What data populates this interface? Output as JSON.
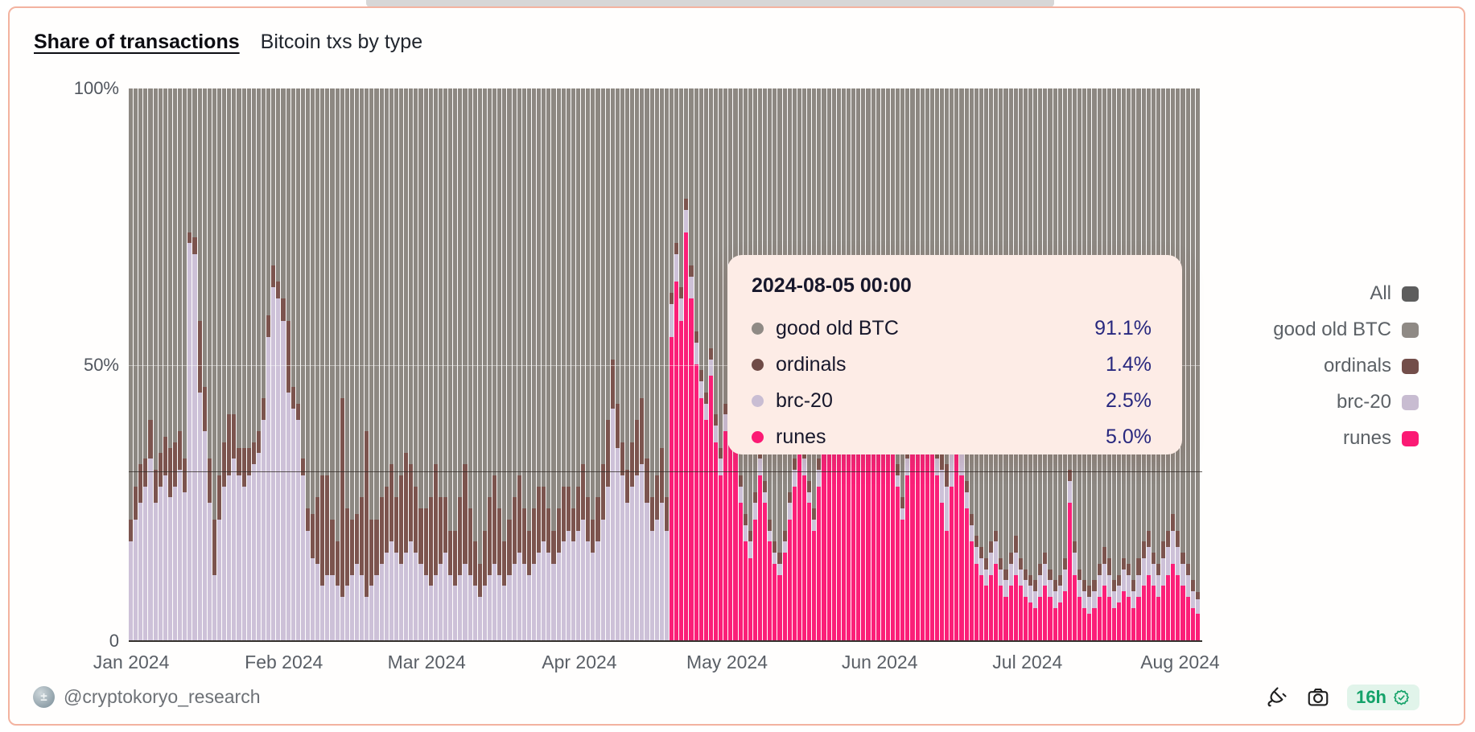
{
  "header": {
    "title": "Share of transactions",
    "subtitle": "Bitcoin txs by type"
  },
  "tooltip": {
    "title": "2024-08-05 00:00",
    "rows": [
      {
        "label": "good old BTC",
        "value": "91.1%",
        "color": "#8f8a85"
      },
      {
        "label": "ordinals",
        "value": "1.4%",
        "color": "#6f4b47"
      },
      {
        "label": "brc-20",
        "value": "2.5%",
        "color": "#c9bdd3"
      },
      {
        "label": "runes",
        "value": "5.0%",
        "color": "#fb1a74"
      }
    ]
  },
  "legend": {
    "items": [
      {
        "label": "All",
        "color": "#5d5d5d"
      },
      {
        "label": "good old BTC",
        "color": "#8f8a85"
      },
      {
        "label": "ordinals",
        "color": "#734e4a"
      },
      {
        "label": "brc-20",
        "color": "#c8bcd1"
      },
      {
        "label": "runes",
        "color": "#fb1a74"
      }
    ]
  },
  "footer": {
    "handle": "@cryptokoryo_research",
    "badge_label": "16h"
  },
  "icons": {
    "plug": "plug-icon",
    "camera": "camera-icon",
    "verified": "verified-seal-icon"
  },
  "colors": {
    "card_border": "#f3b3a0",
    "good_old_btc": "#8d8882",
    "ordinals": "#7c544e",
    "brc20": "#cdc1d8",
    "runes": "#fb1f78",
    "tooltip_bg": "#fdece6",
    "tooltip_value_text": "#28287f",
    "badge_green": "#13a269",
    "badge_bg": "#e1f4ea"
  },
  "chart_data": {
    "type": "bar",
    "stacked": true,
    "title": "Share of transactions — Bitcoin txs by type",
    "x_unit": "day",
    "start_date": "2024-01-01",
    "end_date": "2024-08-05",
    "n_bars": 218,
    "ylim": [
      0,
      100
    ],
    "grid": "y-50-only",
    "legend_position": "right",
    "reference_line_pct": 30.7,
    "y_ticks": [
      {
        "label": "100%",
        "value": 100
      },
      {
        "label": "50%",
        "value": 50
      },
      {
        "label": "0",
        "value": 0
      }
    ],
    "x_ticks": [
      {
        "label": "Jan 2024",
        "day": 0
      },
      {
        "label": "Feb 2024",
        "day": 31
      },
      {
        "label": "Mar 2024",
        "day": 60
      },
      {
        "label": "Apr 2024",
        "day": 91
      },
      {
        "label": "May 2024",
        "day": 121
      },
      {
        "label": "Jun 2024",
        "day": 152
      },
      {
        "label": "Jul 2024",
        "day": 182
      },
      {
        "label": "Aug 2024",
        "day": 213
      }
    ],
    "stack_order_bottom_to_top": [
      "runes",
      "brc-20",
      "ordinals",
      "good old BTC"
    ],
    "series": [
      {
        "name": "runes",
        "color": "#fb1f78",
        "values": [
          0,
          0,
          0,
          0,
          0,
          0,
          0,
          0,
          0,
          0,
          0,
          0,
          0,
          0,
          0,
          0,
          0,
          0,
          0,
          0,
          0,
          0,
          0,
          0,
          0,
          0,
          0,
          0,
          0,
          0,
          0,
          0,
          0,
          0,
          0,
          0,
          0,
          0,
          0,
          0,
          0,
          0,
          0,
          0,
          0,
          0,
          0,
          0,
          0,
          0,
          0,
          0,
          0,
          0,
          0,
          0,
          0,
          0,
          0,
          0,
          0,
          0,
          0,
          0,
          0,
          0,
          0,
          0,
          0,
          0,
          0,
          0,
          0,
          0,
          0,
          0,
          0,
          0,
          0,
          0,
          0,
          0,
          0,
          0,
          0,
          0,
          0,
          0,
          0,
          0,
          0,
          0,
          0,
          0,
          0,
          0,
          0,
          0,
          0,
          0,
          0,
          0,
          0,
          0,
          0,
          0,
          0,
          0,
          0,
          0,
          55,
          65,
          58,
          74,
          62,
          50,
          44,
          40,
          48,
          36,
          30,
          38,
          45,
          35,
          25,
          18,
          15,
          22,
          30,
          25,
          18,
          14,
          12,
          16,
          22,
          28,
          35,
          30,
          25,
          20,
          28,
          38,
          45,
          40,
          35,
          42,
          48,
          52,
          55,
          50,
          45,
          40,
          45,
          50,
          42,
          35,
          28,
          22,
          30,
          38,
          45,
          52,
          45,
          38,
          30,
          25,
          20,
          28,
          35,
          30,
          24,
          18,
          14,
          12,
          10,
          12,
          14,
          10,
          8,
          10,
          12,
          10,
          8,
          7,
          6,
          8,
          10,
          8,
          6,
          7,
          9,
          25,
          12,
          8,
          6,
          5,
          6,
          8,
          10,
          8,
          6,
          7,
          9,
          8,
          6,
          8,
          10,
          12,
          10,
          8,
          10,
          12,
          14,
          12,
          10,
          8,
          6,
          5
        ]
      },
      {
        "name": "brc-20",
        "color": "#cdc1d8",
        "values": [
          18,
          22,
          25,
          28,
          33,
          25,
          28,
          30,
          26,
          28,
          31,
          27,
          72,
          70,
          45,
          38,
          25,
          12,
          22,
          28,
          30,
          33,
          30,
          28,
          30,
          32,
          34,
          40,
          55,
          64,
          62,
          58,
          45,
          42,
          40,
          30,
          20,
          15,
          14,
          10,
          12,
          12,
          10,
          8,
          10,
          12,
          14,
          12,
          8,
          10,
          12,
          14,
          16,
          18,
          16,
          14,
          16,
          18,
          16,
          14,
          12,
          10,
          12,
          14,
          16,
          12,
          10,
          12,
          14,
          12,
          10,
          8,
          10,
          12,
          14,
          12,
          10,
          12,
          14,
          16,
          14,
          12,
          14,
          16,
          18,
          16,
          14,
          16,
          18,
          20,
          18,
          20,
          22,
          18,
          16,
          18,
          22,
          28,
          42,
          35,
          30,
          25,
          28,
          30,
          32,
          25,
          20,
          22,
          25,
          20,
          6,
          5,
          4,
          4,
          4,
          4,
          3,
          3,
          3,
          3,
          3,
          3,
          3,
          3,
          3,
          3,
          3,
          3,
          3,
          2,
          2,
          2,
          2,
          2,
          3,
          3,
          3,
          3,
          2,
          2,
          3,
          3,
          3,
          3,
          2,
          3,
          3,
          3,
          3,
          3,
          3,
          3,
          3,
          3,
          3,
          3,
          2,
          2,
          3,
          3,
          3,
          4,
          3,
          3,
          3,
          6,
          8,
          6,
          4,
          4,
          3,
          3,
          3,
          3,
          3,
          4,
          4,
          3,
          3,
          4,
          4,
          3,
          3,
          3,
          3,
          4,
          4,
          3,
          3,
          3,
          4,
          4,
          4,
          3,
          3,
          3,
          3,
          4,
          4,
          4,
          3,
          3,
          4,
          4,
          3,
          4,
          5,
          5,
          4,
          4,
          5,
          5,
          6,
          5,
          4,
          4,
          3,
          2.5
        ]
      },
      {
        "name": "ordinals",
        "color": "#7c544e",
        "values": [
          4,
          6,
          7,
          5,
          7,
          6,
          6,
          7,
          9,
          8,
          7,
          6,
          2,
          3,
          13,
          8,
          8,
          10,
          8,
          8,
          11,
          8,
          5,
          7,
          5,
          4,
          4,
          4,
          4,
          4,
          3,
          4,
          13,
          4,
          3,
          3,
          4,
          8,
          12,
          20,
          18,
          10,
          8,
          36,
          14,
          10,
          9,
          14,
          30,
          12,
          10,
          12,
          12,
          14,
          10,
          16,
          18,
          14,
          12,
          10,
          12,
          16,
          20,
          12,
          10,
          8,
          10,
          14,
          18,
          12,
          8,
          6,
          10,
          14,
          16,
          12,
          8,
          10,
          12,
          14,
          10,
          8,
          10,
          12,
          10,
          8,
          6,
          8,
          10,
          8,
          6,
          8,
          10,
          8,
          6,
          8,
          10,
          12,
          9,
          8,
          6,
          6,
          8,
          10,
          12,
          8,
          6,
          8,
          10,
          6,
          2,
          2,
          2,
          2,
          2,
          2,
          2,
          2,
          2,
          2,
          2,
          2,
          2,
          2,
          2,
          2,
          2,
          2,
          2,
          2,
          2,
          2,
          2,
          2,
          2,
          2,
          2,
          2,
          2,
          2,
          2,
          2,
          2,
          2,
          2,
          2,
          2,
          2,
          2,
          2,
          2,
          2,
          2,
          2,
          2,
          2,
          2,
          2,
          2,
          2,
          2,
          2,
          2,
          2,
          2,
          3,
          4,
          3,
          2,
          2,
          2,
          2,
          2,
          2,
          2,
          2,
          2,
          2,
          2,
          2,
          3,
          2,
          2,
          2,
          2,
          2,
          2,
          2,
          2,
          2,
          2,
          2,
          2,
          2,
          2,
          2,
          2,
          2,
          3,
          3,
          2,
          2,
          2,
          2,
          2,
          3,
          3,
          3,
          2,
          2,
          3,
          3,
          3,
          3,
          2,
          2,
          2,
          1.4
        ]
      },
      {
        "name": "good old BTC",
        "color": "#8d8882",
        "values": "remainder-to-100"
      }
    ]
  }
}
